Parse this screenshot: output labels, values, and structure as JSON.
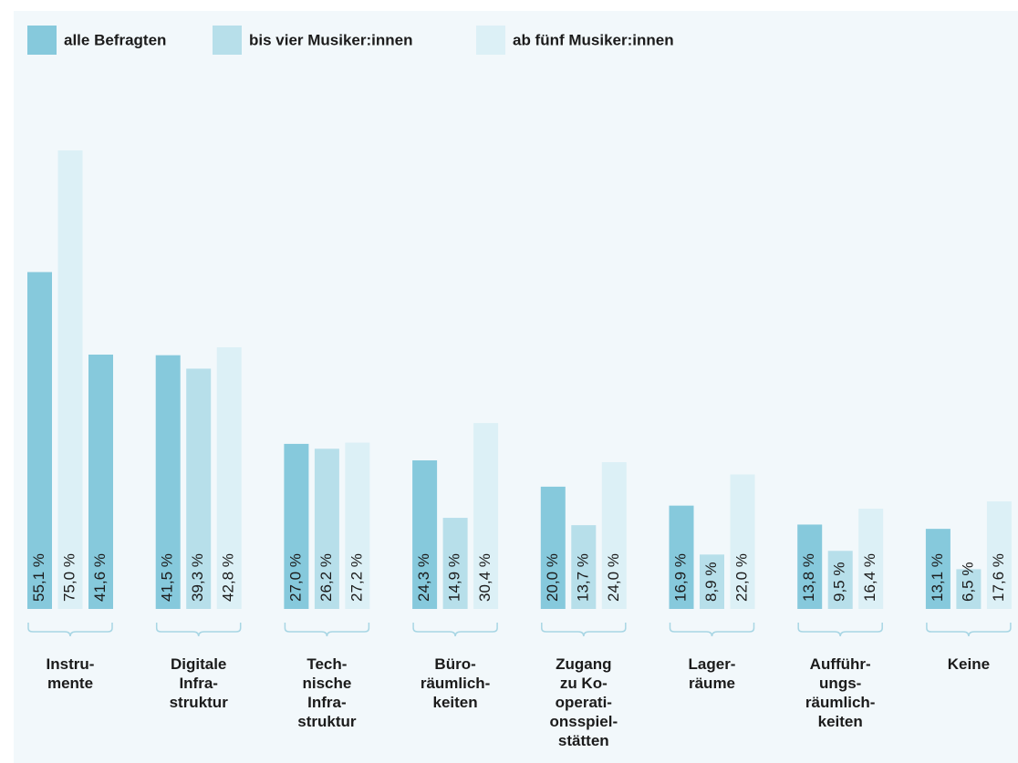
{
  "chart_data": {
    "type": "bar",
    "categories": [
      [
        "Instru-",
        "mente"
      ],
      [
        "Digitale",
        "Infra-",
        "struktur"
      ],
      [
        "Tech-",
        "nische",
        "Infra-",
        "struktur"
      ],
      [
        "Büro-",
        "räumlich-",
        "keiten"
      ],
      [
        "Zugang",
        "zu Ko-",
        "operati-",
        "onsspiel-",
        "stätten"
      ],
      [
        "Lager-",
        "räume"
      ],
      [
        "Aufführ-",
        "ungs-",
        "räumlich-",
        "keiten"
      ],
      [
        "Keine"
      ]
    ],
    "series": [
      {
        "name": "alle Befragten",
        "color": "#86c9dc",
        "values": [
          55.1,
          41.5,
          27.0,
          24.3,
          20.0,
          16.9,
          13.8,
          13.1
        ],
        "value_labels": [
          "55,1 %",
          "41,5 %",
          "27,0 %",
          "24,3 %",
          "20,0 %",
          "16,9 %",
          "13,8 %",
          "13,1 %"
        ]
      },
      {
        "name": "bis vier Musiker:innen",
        "color": "#b7dfea",
        "colors": [
          "#dcf0f6",
          "#b7dfea",
          "#b7dfea",
          "#b7dfea",
          "#b7dfea",
          "#b7dfea",
          "#b7dfea",
          "#b7dfea"
        ],
        "values": [
          75.0,
          39.3,
          26.2,
          14.9,
          13.7,
          8.9,
          9.5,
          6.5
        ],
        "value_labels": [
          "75,0 %",
          "39,3 %",
          "26,2 %",
          "14,9 %",
          "13,7 %",
          "8,9 %",
          "9,5 %",
          "6,5 %"
        ]
      },
      {
        "name": "ab fünf Musiker:innen",
        "color": "#dcf0f6",
        "colors": [
          "#86c9dc",
          "#dcf0f6",
          "#dcf0f6",
          "#dcf0f6",
          "#dcf0f6",
          "#dcf0f6",
          "#dcf0f6",
          "#dcf0f6"
        ],
        "values": [
          41.6,
          42.8,
          27.2,
          30.4,
          24.0,
          22.0,
          16.4,
          17.6
        ],
        "value_labels": [
          "41,6 %",
          "42,8 %",
          "27,2 %",
          "30,4 %",
          "24,0 %",
          "22,0 %",
          "16,4 %",
          "17,6 %"
        ]
      }
    ]
  }
}
